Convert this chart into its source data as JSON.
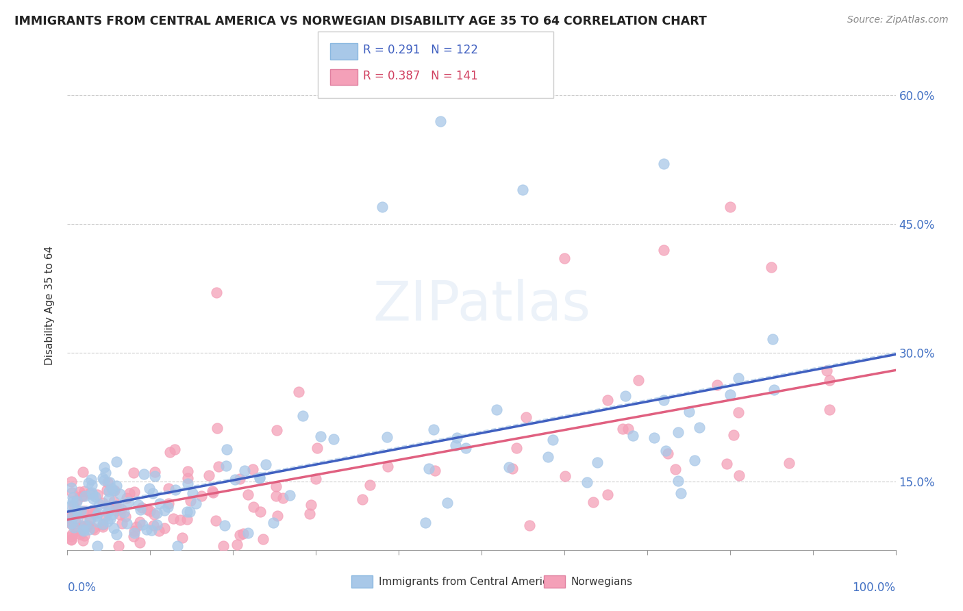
{
  "title": "IMMIGRANTS FROM CENTRAL AMERICA VS NORWEGIAN DISABILITY AGE 35 TO 64 CORRELATION CHART",
  "source": "Source: ZipAtlas.com",
  "ylabel": "Disability Age 35 to 64",
  "ytick_labels": [
    "15.0%",
    "30.0%",
    "45.0%",
    "60.0%"
  ],
  "ytick_values": [
    0.15,
    0.3,
    0.45,
    0.6
  ],
  "xmin": 0.0,
  "xmax": 1.0,
  "ymin": 0.07,
  "ymax": 0.64,
  "blue_R": "0.291",
  "blue_N": "122",
  "pink_R": "0.387",
  "pink_N": "141",
  "blue_scatter_color": "#a8c8e8",
  "pink_scatter_color": "#f4a0b8",
  "blue_line_color": "#4060c0",
  "pink_line_color": "#e06080",
  "dash_line_color": "#a8c8e8",
  "legend_label_blue": "Immigrants from Central America",
  "legend_label_pink": "Norwegians",
  "blue_trend_intercept": 0.118,
  "blue_trend_slope": 0.135,
  "pink_trend_intercept": 0.11,
  "pink_trend_slope": 0.14
}
